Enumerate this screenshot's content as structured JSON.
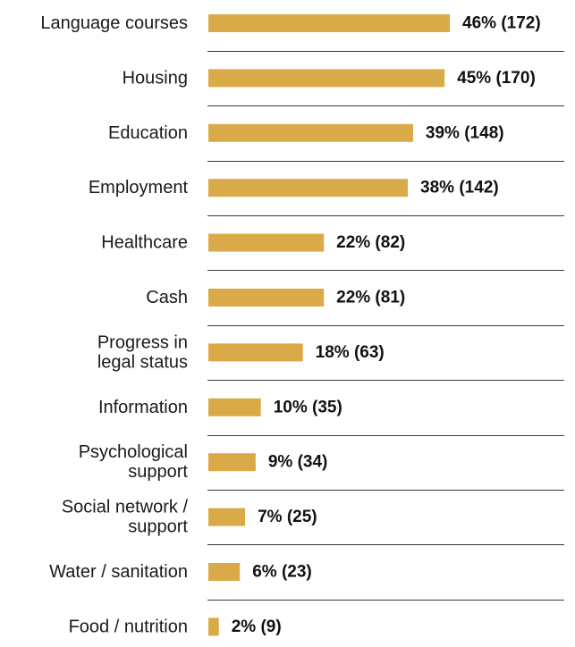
{
  "chart_data": {
    "type": "bar",
    "orientation": "horizontal",
    "bar_color": "#D9AA47",
    "grid": false,
    "categories": [
      [
        "Language courses"
      ],
      [
        "Housing"
      ],
      [
        "Education"
      ],
      [
        "Employment"
      ],
      [
        "Healthcare"
      ],
      [
        "Cash"
      ],
      [
        "Progress in",
        "legal status"
      ],
      [
        "Information"
      ],
      [
        "Psychological",
        "support"
      ],
      [
        "Social network /",
        "support"
      ],
      [
        "Water / sanitation"
      ],
      [
        "Food / nutrition"
      ]
    ],
    "values": [
      46,
      45,
      39,
      38,
      22,
      22,
      18,
      10,
      9,
      7,
      6,
      2
    ],
    "counts": [
      172,
      170,
      148,
      142,
      82,
      81,
      63,
      35,
      34,
      25,
      23,
      9
    ],
    "data_labels": [
      "46% (172)",
      "45% (170)",
      "39% (148)",
      "38% (142)",
      "22% (82)",
      "22% (81)",
      "18% (63)",
      "10% (35)",
      "9% (34)",
      "7% (25)",
      "6% (23)",
      "2% (9)"
    ]
  }
}
